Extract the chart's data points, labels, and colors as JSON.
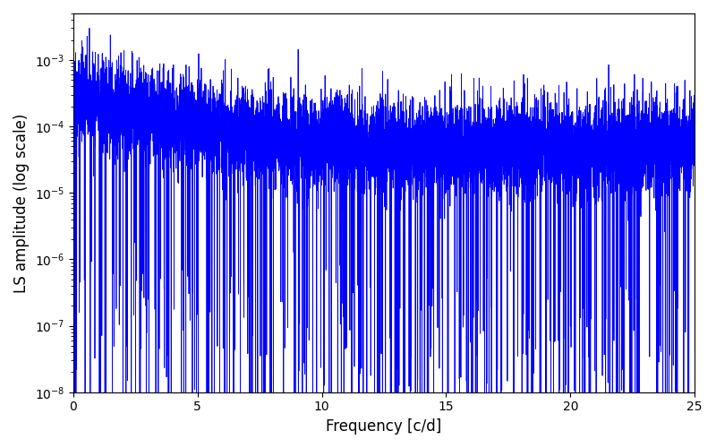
{
  "title": "",
  "xlabel": "Frequency [c/d]",
  "ylabel": "LS amplitude (log scale)",
  "xlim": [
    0,
    25
  ],
  "ylim": [
    1e-08,
    0.005
  ],
  "line_color": "#0000ff",
  "line_width": 0.6,
  "background_color": "#ffffff",
  "n_points": 8000,
  "freq_max": 25.0,
  "seed": 42,
  "base_amplitude_low": 0.0003,
  "base_amplitude_high": 5e-05,
  "decay_knee": 3.0,
  "noise_sigma": 0.8,
  "n_deep_dips": 400,
  "dip_depth_min": 2.0,
  "dip_depth_max": 5.5,
  "figsize": [
    8.0,
    5.0
  ],
  "dpi": 100
}
